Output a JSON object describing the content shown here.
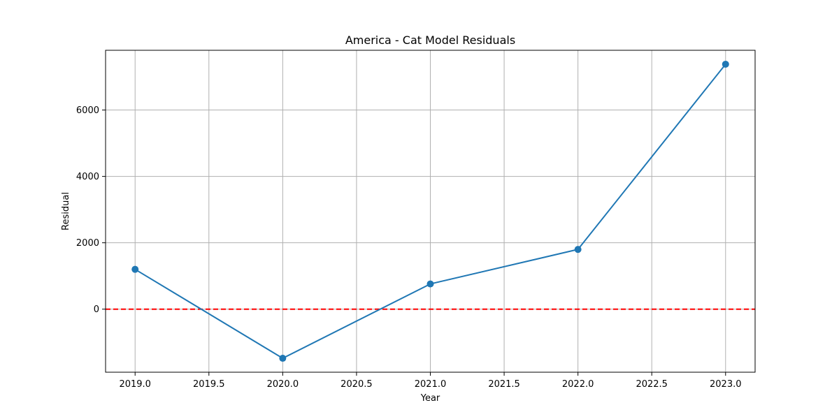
{
  "chart_data": {
    "type": "line",
    "title": "America - Cat Model Residuals",
    "xlabel": "Year",
    "ylabel": "Residual",
    "x": [
      2019,
      2020,
      2021,
      2022,
      2023
    ],
    "series": [
      {
        "values": [
          1200,
          -1480,
          760,
          1800,
          7380
        ]
      }
    ],
    "reference_line": {
      "y": 0,
      "style": "dashed",
      "color": "#ff0000"
    },
    "xlim": [
      2018.8,
      2023.2
    ],
    "ylim": [
      -1900,
      7800
    ],
    "xticks": [
      2019.0,
      2019.5,
      2020.0,
      2020.5,
      2021.0,
      2021.5,
      2022.0,
      2022.5,
      2023.0
    ],
    "xtick_labels": [
      "2019.0",
      "2019.5",
      "2020.0",
      "2020.5",
      "2021.0",
      "2021.5",
      "2022.0",
      "2022.5",
      "2023.0"
    ],
    "yticks": [
      0,
      2000,
      4000,
      6000
    ],
    "ytick_labels": [
      "0",
      "2000",
      "4000",
      "6000"
    ],
    "grid": true,
    "colors": {
      "line": "#1f77b4",
      "reference": "#ff0000",
      "grid": "#b0b0b0"
    }
  }
}
